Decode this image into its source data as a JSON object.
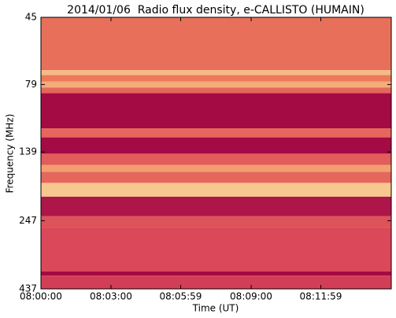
{
  "chart_data": {
    "type": "spectrogram",
    "title": "2014/01/06  Radio flux density, e-CALLISTO (HUMAIN)",
    "xlabel": "Time (UT)",
    "ylabel": "Frequency (MHz)",
    "xlim": [
      0,
      900
    ],
    "xticks": [
      {
        "value": 0,
        "label": "08:00:00"
      },
      {
        "value": 180,
        "label": "08:03:00"
      },
      {
        "value": 359,
        "label": "08:05:59"
      },
      {
        "value": 540,
        "label": "08:09:00"
      },
      {
        "value": 719,
        "label": "08:11:59"
      }
    ],
    "ylim": [
      45,
      437
    ],
    "yscale": "log",
    "yinverted": true,
    "yticks": [
      45,
      79,
      139,
      247,
      437
    ],
    "freq_edges": [
      45,
      70,
      73,
      77,
      81,
      85,
      114,
      123,
      141,
      155,
      164,
      180,
      202,
      238,
      263,
      378,
      391,
      437
    ],
    "levels": [
      0.55,
      0.85,
      0.6,
      0.8,
      0.5,
      0.05,
      0.5,
      0.05,
      0.45,
      0.75,
      0.5,
      0.9,
      0.1,
      0.4,
      0.35,
      0.05,
      0.3
    ],
    "colormap": [
      "#9b0040",
      "#d9455a",
      "#f0875c",
      "#fbe3a6"
    ]
  }
}
